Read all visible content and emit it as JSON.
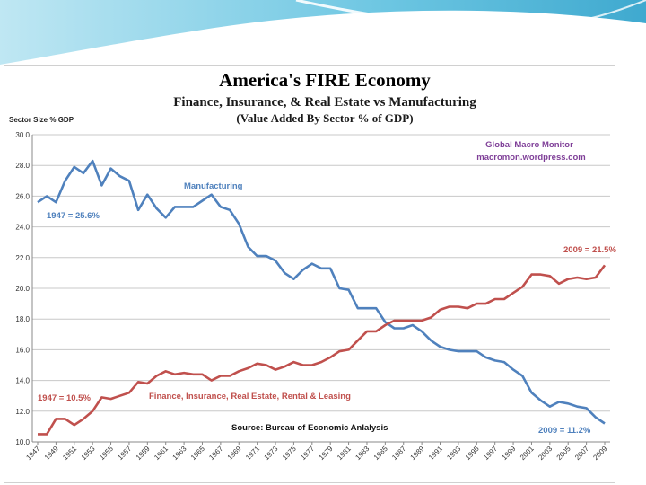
{
  "chart_data": {
    "type": "line",
    "title": "America's FIRE Economy",
    "subtitle": "Finance, Insurance, & Real Estate vs Manufacturing",
    "subtitle2": "(Value Added By Sector % of GDP)",
    "ylabel": "Sector Size % GDP",
    "ylim": [
      10,
      30
    ],
    "yticks": [
      "10.0",
      "12.0",
      "14.0",
      "16.0",
      "18.0",
      "20.0",
      "22.0",
      "24.0",
      "26.0",
      "28.0",
      "30.0"
    ],
    "xticks": [
      "1947",
      "1949",
      "1951",
      "1953",
      "1955",
      "1957",
      "1959",
      "1961",
      "1963",
      "1965",
      "1967",
      "1969",
      "1971",
      "1973",
      "1975",
      "1977",
      "1979",
      "1981",
      "1983",
      "1985",
      "1987",
      "1989",
      "1991",
      "1993",
      "1995",
      "1997",
      "1999",
      "2001",
      "2003",
      "2005",
      "2007",
      "2009"
    ],
    "x": [
      1947,
      1948,
      1949,
      1950,
      1951,
      1952,
      1953,
      1954,
      1955,
      1956,
      1957,
      1958,
      1959,
      1960,
      1961,
      1962,
      1963,
      1964,
      1965,
      1966,
      1967,
      1968,
      1969,
      1970,
      1971,
      1972,
      1973,
      1974,
      1975,
      1976,
      1977,
      1978,
      1979,
      1980,
      1981,
      1982,
      1983,
      1984,
      1985,
      1986,
      1987,
      1988,
      1989,
      1990,
      1991,
      1992,
      1993,
      1994,
      1995,
      1996,
      1997,
      1998,
      1999,
      2000,
      2001,
      2002,
      2003,
      2004,
      2005,
      2006,
      2007,
      2008,
      2009
    ],
    "series": [
      {
        "name": "Manufacturing",
        "color": "#4f81bd",
        "values": [
          25.6,
          26.0,
          25.6,
          27.0,
          27.9,
          27.5,
          28.3,
          26.7,
          27.8,
          27.3,
          27.0,
          25.1,
          26.1,
          25.2,
          24.6,
          25.3,
          25.3,
          25.3,
          25.7,
          26.1,
          25.3,
          25.1,
          24.2,
          22.7,
          22.1,
          22.1,
          21.8,
          21.0,
          20.6,
          21.2,
          21.6,
          21.3,
          21.3,
          20.0,
          19.9,
          18.7,
          18.7,
          18.7,
          17.8,
          17.4,
          17.4,
          17.6,
          17.2,
          16.6,
          16.2,
          16.0,
          15.9,
          15.9,
          15.9,
          15.5,
          15.3,
          15.2,
          14.7,
          14.3,
          13.2,
          12.7,
          12.3,
          12.6,
          12.5,
          12.3,
          12.2,
          11.6,
          11.2
        ]
      },
      {
        "name": "Finance, Insurance, Real Estate, Rental & Leasing",
        "color": "#c0504d",
        "values": [
          10.5,
          10.5,
          11.5,
          11.5,
          11.1,
          11.5,
          12.0,
          12.9,
          12.8,
          13.0,
          13.2,
          13.9,
          13.8,
          14.3,
          14.6,
          14.4,
          14.5,
          14.4,
          14.4,
          14.0,
          14.3,
          14.3,
          14.6,
          14.8,
          15.1,
          15.0,
          14.7,
          14.9,
          15.2,
          15.0,
          15.0,
          15.2,
          15.5,
          15.9,
          16.0,
          16.6,
          17.2,
          17.2,
          17.6,
          17.9,
          17.9,
          17.9,
          17.9,
          18.1,
          18.6,
          18.8,
          18.8,
          18.7,
          19.0,
          19.0,
          19.3,
          19.3,
          19.7,
          20.1,
          20.9,
          20.9,
          20.8,
          20.3,
          20.6,
          20.7,
          20.6,
          20.7,
          21.5
        ]
      }
    ],
    "annotations": {
      "source": "Source:  Bureau of Economic Anlalysis",
      "credit1": "Global Macro Monitor",
      "credit2": "macromon.wordpress.com",
      "mfg_label": "Manufacturing",
      "fire_label": "Finance, Insurance, Real Estate, Rental  & Leasing",
      "mfg_1947": "1947 = 25.6%",
      "fire_1947": "1947 = 10.5%",
      "fire_2009": "2009 = 21.5%",
      "mfg_2009": "2009 = 11.2%"
    }
  }
}
